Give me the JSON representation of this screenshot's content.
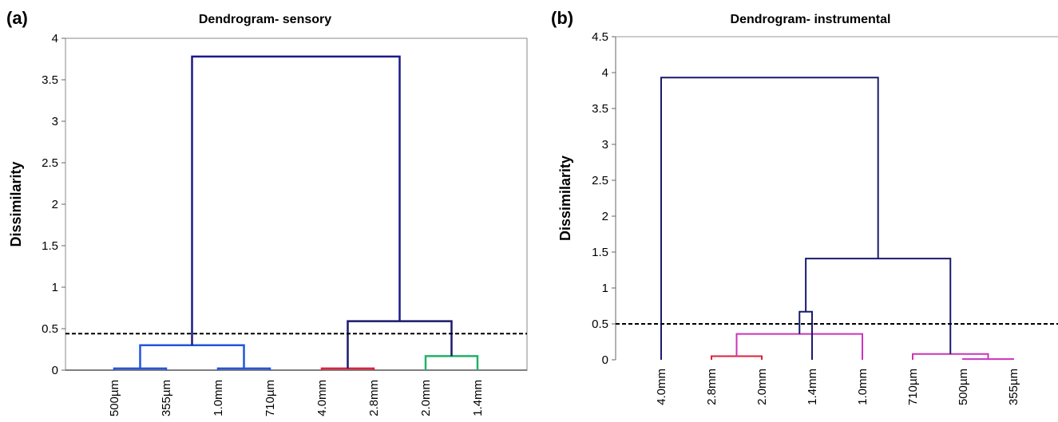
{
  "panels": [
    {
      "letter": "(a)",
      "title": "Dendrogram- sensory"
    },
    {
      "letter": "(b)",
      "title": "Dendrogram- instrumental"
    }
  ],
  "chart_data": [
    {
      "type": "dendrogram",
      "title": "Dendrogram- sensory",
      "ylabel": "Dissimilarity",
      "ylim": [
        0,
        4
      ],
      "yticks": [
        "0",
        "0.5",
        "1",
        "1.5",
        "2",
        "2.5",
        "3",
        "3.5",
        "4"
      ],
      "ytick_values": [
        0,
        0.5,
        1,
        1.5,
        2,
        2.5,
        3,
        3.5,
        4
      ],
      "leaves": [
        "500µm",
        "355µm",
        "1.0mm",
        "710µm",
        "4.0mm",
        "2.8mm",
        "2.0mm",
        "1.4mm"
      ],
      "truncation_line": 0.44,
      "links": [
        {
          "left": 0,
          "right": 1,
          "height": 0.02,
          "color": "#2255dd"
        },
        {
          "left": 2,
          "right": 3,
          "height": 0.02,
          "color": "#2255dd"
        },
        {
          "left": 4,
          "right": 5,
          "height": 0.02,
          "color": "#e0203c"
        },
        {
          "left": 6,
          "right": 7,
          "height": 0.17,
          "color": "#22b266"
        },
        {
          "left": 8,
          "right": 9,
          "height": 0.3,
          "color": "#2255dd"
        },
        {
          "left": 10,
          "right": 11,
          "height": 0.59,
          "color": "#1a1a6e"
        },
        {
          "left": 12,
          "right": 13,
          "height": 3.78,
          "color": "#1a1a8c"
        }
      ]
    },
    {
      "type": "dendrogram",
      "title": "Dendrogram- instrumental",
      "ylabel": "Dissimilarity",
      "ylim": [
        0,
        4.5
      ],
      "yticks": [
        "0",
        "0.5",
        "1",
        "1.5",
        "2",
        "2.5",
        "3",
        "3.5",
        "4",
        "4.5"
      ],
      "ytick_values": [
        0,
        0.5,
        1,
        1.5,
        2,
        2.5,
        3,
        3.5,
        4,
        4.5
      ],
      "leaves": [
        "4.0mm",
        "2.8mm",
        "2.0mm",
        "1.4mm",
        "1.0mm",
        "710µm",
        "500µm",
        "355µm"
      ],
      "truncation_line": 0.5,
      "links": [
        {
          "left": 6,
          "right": 7,
          "height": 0.01,
          "color": "#cc33bb"
        },
        {
          "left": 1,
          "right": 2,
          "height": 0.05,
          "color": "#e0203c"
        },
        {
          "left": 5,
          "right": 8,
          "height": 0.08,
          "color": "#cc33bb"
        },
        {
          "left": 4,
          "right": 9,
          "height": 0.36,
          "color": "#cc33bb"
        },
        {
          "left": 3,
          "right": 11,
          "height": 0.67,
          "color": "#1a1a6e"
        },
        {
          "left": 10,
          "right": 12,
          "height": 1.41,
          "color": "#1a1a6e"
        },
        {
          "left": 0,
          "right": 13,
          "height": 3.93,
          "color": "#1a1a6e"
        }
      ]
    }
  ]
}
